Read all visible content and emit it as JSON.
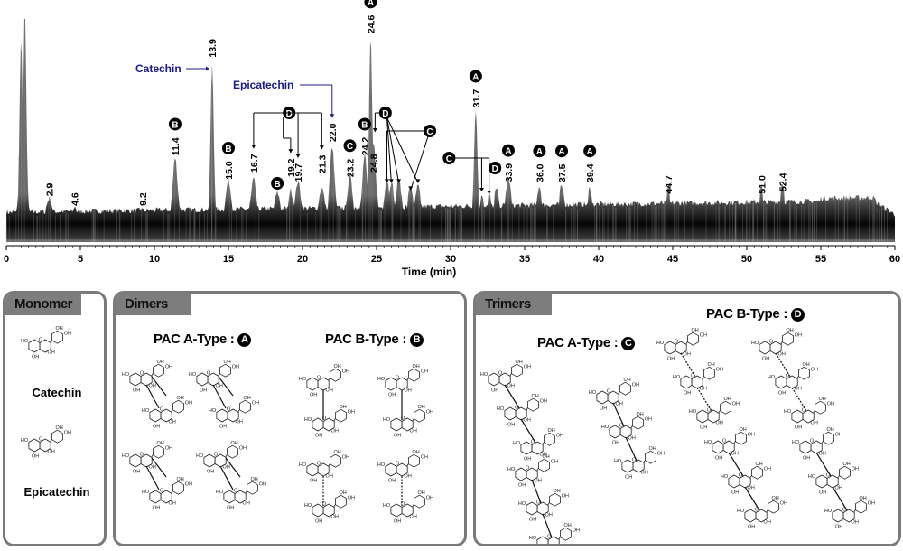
{
  "chart_data": {
    "type": "line",
    "xlabel": "Time (min)",
    "ylabel": "",
    "xlim": [
      0,
      60
    ],
    "xticks": [
      0,
      5,
      10,
      15,
      20,
      25,
      30,
      35,
      40,
      45,
      50,
      55,
      60
    ],
    "yunits": "relative intensity (unlabeled)",
    "grid": false,
    "peaks": [
      {
        "rt": 1.0,
        "intensity": 88
      },
      {
        "rt": 1.25,
        "intensity": 100
      },
      {
        "rt": 2.9,
        "intensity": 18,
        "label": "2.9"
      },
      {
        "rt": 4.6,
        "intensity": 14,
        "label": "4.6"
      },
      {
        "rt": 9.2,
        "intensity": 14,
        "label": "9.2"
      },
      {
        "rt": 11.4,
        "intensity": 35,
        "label": "11.4",
        "class": "B"
      },
      {
        "rt": 13.9,
        "intensity": 76,
        "label": "13.9",
        "compound": "Catechin"
      },
      {
        "rt": 15.0,
        "intensity": 25,
        "label": "15.0",
        "class": "B"
      },
      {
        "rt": 16.7,
        "intensity": 25,
        "label": "16.7",
        "class": "D"
      },
      {
        "rt": 18.3,
        "intensity": 19,
        "class": "B"
      },
      {
        "rt": 19.2,
        "intensity": 20,
        "label": "19.2",
        "class": "D"
      },
      {
        "rt": 19.7,
        "intensity": 24,
        "label": "19.7",
        "class": "D"
      },
      {
        "rt": 21.3,
        "intensity": 21,
        "label": "21.3",
        "class": "D"
      },
      {
        "rt": 22.0,
        "intensity": 39,
        "label": "22.0",
        "compound": "Epicatechin"
      },
      {
        "rt": 23.2,
        "intensity": 26,
        "label": "23.2",
        "class": "C"
      },
      {
        "rt": 24.2,
        "intensity": 35,
        "label": "24.2",
        "class": "B"
      },
      {
        "rt": 24.6,
        "intensity": 86,
        "label": "24.6",
        "class": "A"
      },
      {
        "rt": 24.8,
        "intensity": 40,
        "label": "24.8",
        "class": "D"
      },
      {
        "rt": 25.7,
        "intensity": 24,
        "class": "C"
      },
      {
        "rt": 26.0,
        "intensity": 23,
        "class": "D"
      },
      {
        "rt": 26.5,
        "intensity": 24,
        "class": "D"
      },
      {
        "rt": 27.3,
        "intensity": 21,
        "class": "C"
      },
      {
        "rt": 27.8,
        "intensity": 21,
        "class": "C"
      },
      {
        "rt": 31.7,
        "intensity": 55,
        "label": "31.7",
        "class": "A"
      },
      {
        "rt": 32.1,
        "intensity": 17,
        "class": "C"
      },
      {
        "rt": 32.6,
        "intensity": 17,
        "class": "C"
      },
      {
        "rt": 33.1,
        "intensity": 19,
        "class": "D"
      },
      {
        "rt": 33.9,
        "intensity": 24,
        "label": "33.9",
        "class": "A"
      },
      {
        "rt": 36.0,
        "intensity": 20,
        "label": "36.0",
        "class": "A"
      },
      {
        "rt": 37.5,
        "intensity": 20,
        "label": "37.5",
        "class": "A"
      },
      {
        "rt": 39.4,
        "intensity": 19,
        "label": "39.4",
        "class": "A"
      },
      {
        "rt": 44.7,
        "intensity": 19,
        "label": "44.7"
      },
      {
        "rt": 51.0,
        "intensity": 19,
        "label": "51.0"
      },
      {
        "rt": 52.4,
        "intensity": 20,
        "label": "52.4"
      }
    ],
    "annotations": {
      "catechin": "Catechin",
      "epicatechin": "Epicatechin"
    },
    "annotation_color": "#1c1c84"
  },
  "panels": {
    "monomer": {
      "title": "Monomer",
      "compounds": [
        "Catechin",
        "Epicatechin"
      ]
    },
    "dimers": {
      "title": "Dimers",
      "a_type": "PAC A-Type :",
      "a_badge": "A",
      "b_type": "PAC B-Type :",
      "b_badge": "B"
    },
    "trimers": {
      "title": "Trimers",
      "a_type": "PAC A-Type :",
      "a_badge": "C",
      "b_type": "PAC B-Type :",
      "b_badge": "D"
    }
  },
  "colors": {
    "panel_border": "#7a7a7a",
    "tab_fill": "#7d7d7d",
    "badge": "#000000"
  }
}
